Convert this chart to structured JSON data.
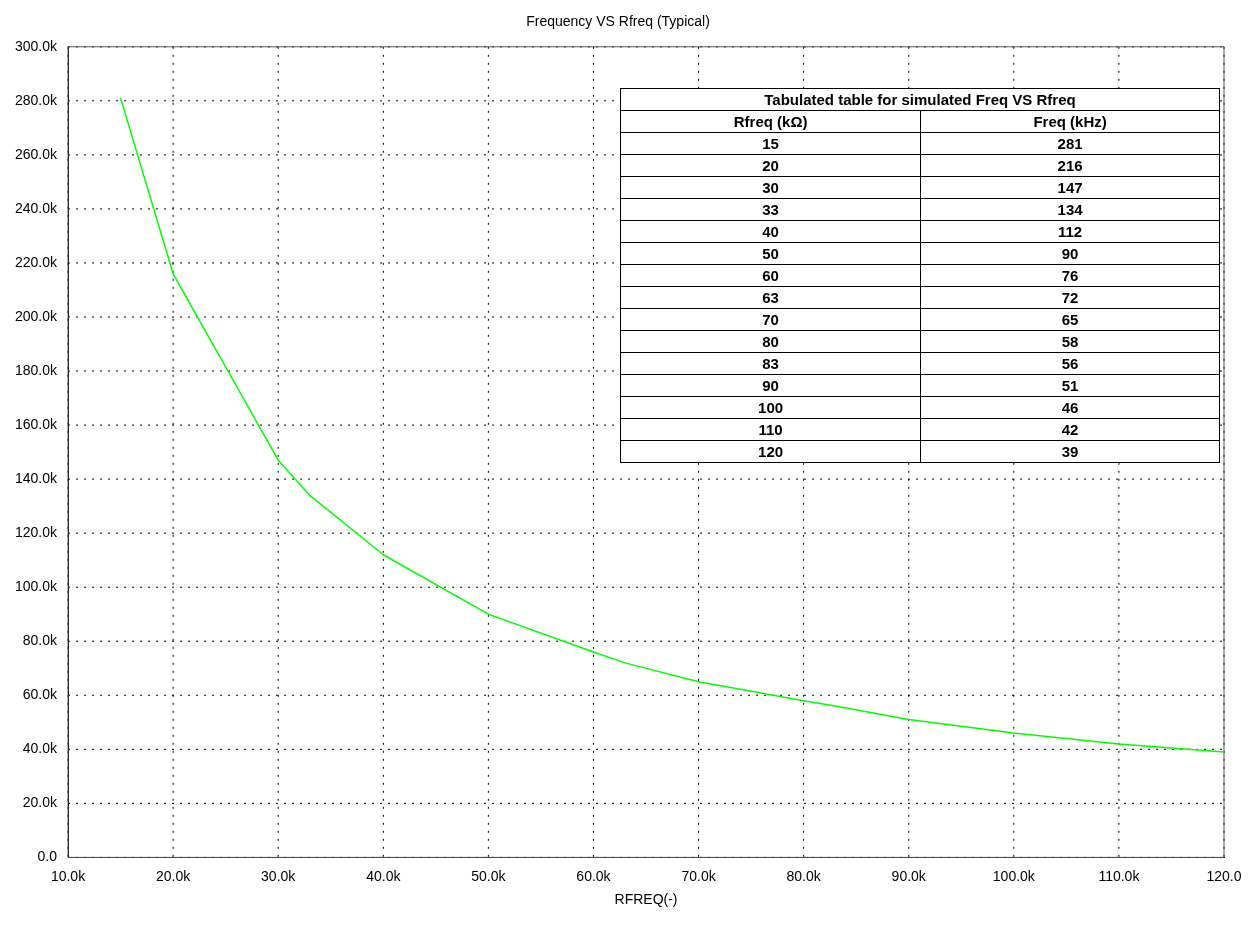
{
  "chart_data": {
    "type": "line",
    "title": "Frequency VS Rfreq (Typical)",
    "xlabel": "RFREQ(-)",
    "x": [
      15,
      20,
      30,
      33,
      40,
      50,
      60,
      63,
      70,
      80,
      83,
      90,
      100,
      110,
      120
    ],
    "series": [
      {
        "color": "#00ff00",
        "values": [
          281,
          216,
          147,
          134,
          112,
          90,
          76,
          72,
          65,
          58,
          56,
          51,
          46,
          42,
          39
        ]
      }
    ],
    "xlim": [
      10,
      120
    ],
    "xticks": [
      {
        "value": 10,
        "label": "10.0k"
      },
      {
        "value": 20,
        "label": "20.0k"
      },
      {
        "value": 30,
        "label": "30.0k"
      },
      {
        "value": 40,
        "label": "40.0k"
      },
      {
        "value": 50,
        "label": "50.0k"
      },
      {
        "value": 60,
        "label": "60.0k"
      },
      {
        "value": 70,
        "label": "70.0k"
      },
      {
        "value": 80,
        "label": "80.0k"
      },
      {
        "value": 90,
        "label": "90.0k"
      },
      {
        "value": 100,
        "label": "100.0k"
      },
      {
        "value": 110,
        "label": "110.0k"
      },
      {
        "value": 120,
        "label": "120.0"
      }
    ],
    "ylim": [
      0,
      300
    ],
    "yticks": [
      {
        "value": 0,
        "label": "0.0"
      },
      {
        "value": 20,
        "label": "20.0k"
      },
      {
        "value": 40,
        "label": "40.0k"
      },
      {
        "value": 60,
        "label": "60.0k"
      },
      {
        "value": 80,
        "label": "80.0k"
      },
      {
        "value": 100,
        "label": "100.0k"
      },
      {
        "value": 120,
        "label": "120.0k"
      },
      {
        "value": 140,
        "label": "140.0k"
      },
      {
        "value": 160,
        "label": "160.0k"
      },
      {
        "value": 180,
        "label": "180.0k"
      },
      {
        "value": 200,
        "label": "200.0k"
      },
      {
        "value": 220,
        "label": "220.0k"
      },
      {
        "value": 240,
        "label": "240.0k"
      },
      {
        "value": 260,
        "label": "260.0k"
      },
      {
        "value": 280,
        "label": "280.0k"
      },
      {
        "value": 300,
        "label": "300.0k"
      }
    ],
    "annotations": [
      "Tabulated table for simulated Freq VS Rfreq",
      "Rfreq (kΩ)",
      "Freq (kHz)",
      "15",
      "281",
      "20",
      "216",
      "30",
      "147",
      "33",
      "134",
      "40",
      "112",
      "50",
      "90",
      "60",
      "76",
      "63",
      "72",
      "70",
      "65",
      "80",
      "58",
      "83",
      "56",
      "90",
      "51",
      "100",
      "46",
      "110",
      "42",
      "120",
      "39"
    ],
    "grid": true,
    "marker": "none",
    "line_style": "solid"
  }
}
